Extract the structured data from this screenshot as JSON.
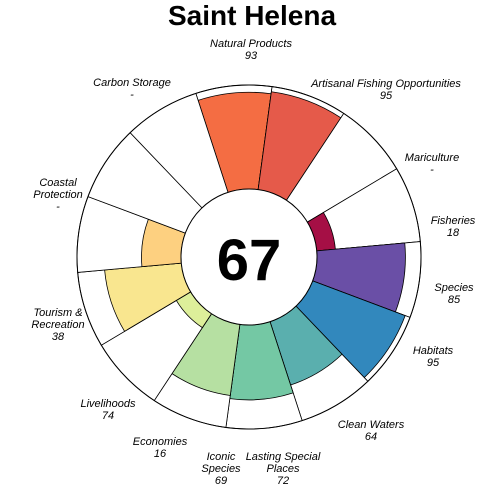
{
  "chart_data": {
    "type": "flower",
    "title": "Saint Helena",
    "overall_score": "67",
    "ylim": [
      0,
      100
    ],
    "petals": [
      {
        "name": "Natural Products",
        "value_text": "93",
        "score": 93,
        "color": "#F46D43"
      },
      {
        "name": "Artisanal Fishing Opportunities",
        "value_text": "95",
        "score": 95,
        "color": "#E55A4A"
      },
      {
        "name": "Mariculture",
        "value_text": "-",
        "score": null,
        "color": "#F46D43"
      },
      {
        "name": "Fisheries",
        "value_text": "18",
        "score": 18,
        "color": "#A50F45"
      },
      {
        "name": "Species",
        "value_text": "85",
        "score": 85,
        "color": "#6A4FA6"
      },
      {
        "name": "Habitats",
        "value_text": "95",
        "score": 95,
        "color": "#3288BD"
      },
      {
        "name": "Clean Waters",
        "value_text": "64",
        "score": 64,
        "color": "#5AAFAE"
      },
      {
        "name": "Lasting Special Places",
        "value_text": "72",
        "score": 72,
        "color": "#74C8A4"
      },
      {
        "name": "Iconic Species",
        "value_text": "69",
        "score": 69,
        "color": "#B6E0A2"
      },
      {
        "name": "Economies",
        "value_text": "16",
        "score": 16,
        "color": "#DDEF9A"
      },
      {
        "name": "Livelihoods",
        "value_text": "74",
        "score": 74,
        "color": "#F9E68F"
      },
      {
        "name": "Tourism & Recreation",
        "value_text": "38",
        "score": 38,
        "color": "#FDD080"
      },
      {
        "name": "Coastal Protection",
        "value_text": "-",
        "score": null,
        "color": "#FDAE61"
      },
      {
        "name": "Carbon Storage",
        "value_text": "-",
        "score": null,
        "color": "#F88D52"
      }
    ]
  }
}
